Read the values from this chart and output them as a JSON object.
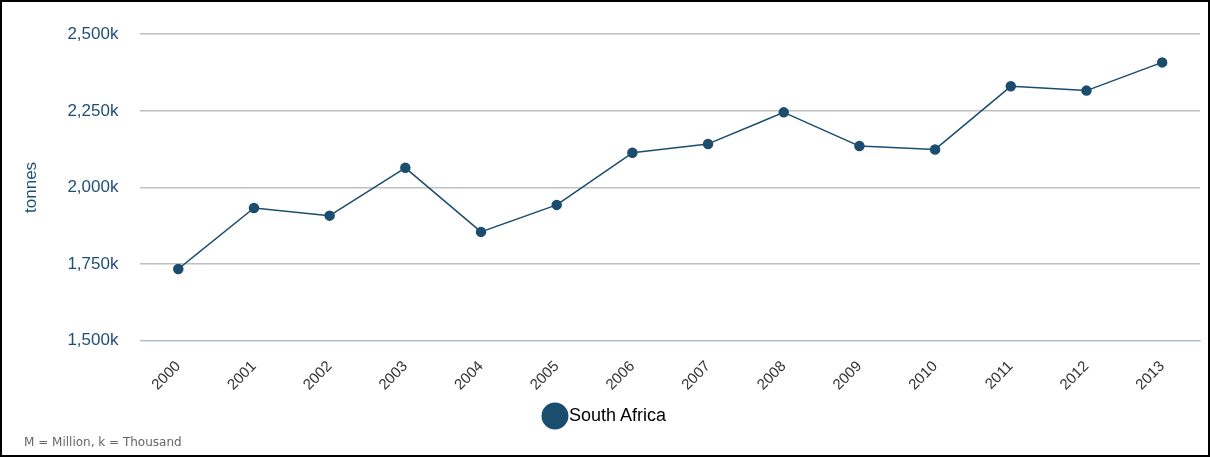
{
  "chart_data": {
    "type": "line",
    "ylabel": "tonnes",
    "categories": [
      "2000",
      "2001",
      "2002",
      "2003",
      "2004",
      "2005",
      "2006",
      "2007",
      "2008",
      "2009",
      "2010",
      "2011",
      "2012",
      "2013"
    ],
    "series": [
      {
        "name": "South Africa",
        "color": "#1b4d6e",
        "values": [
          1734,
          1933,
          1908,
          2064,
          1855,
          1943,
          2113,
          2142,
          2245,
          2135,
          2124,
          2330,
          2316,
          2408
        ]
      }
    ],
    "ylim": [
      1500,
      2500
    ],
    "yticks": [
      {
        "value": 1500,
        "label": "1,500k"
      },
      {
        "value": 1750,
        "label": "1,750k"
      },
      {
        "value": 2000,
        "label": "2,000k"
      },
      {
        "value": 2250,
        "label": "2,250k"
      },
      {
        "value": 2500,
        "label": "2,500k"
      }
    ],
    "grid": "y",
    "legend": "bottom",
    "marker": "circle",
    "line_style": "solid",
    "annotations": [
      "M = Million, k = Thousand"
    ]
  }
}
